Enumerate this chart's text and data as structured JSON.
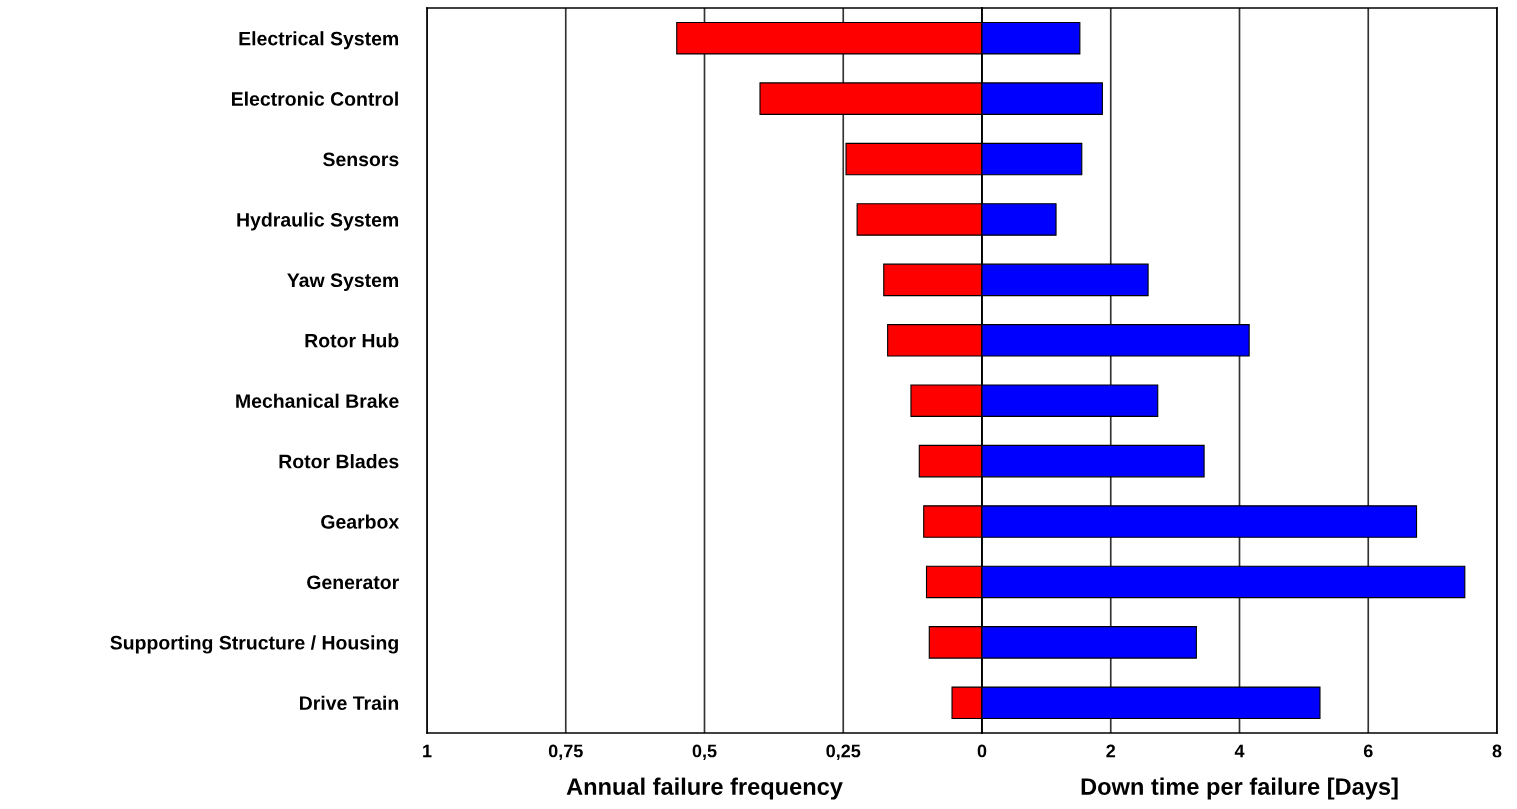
{
  "chart_data": [
    {
      "type": "bar",
      "orientation": "horizontal",
      "xlabel": "Annual failure frequency",
      "categories": [
        "Electrical System",
        "Electronic Control",
        "Sensors",
        "Hydraulic System",
        "Yaw System",
        "Rotor Hub",
        "Mechanical Brake",
        "Rotor Blades",
        "Gearbox",
        "Generator",
        "Supporting Structure / Housing",
        "Drive Train"
      ],
      "series": [
        {
          "color": "#ff0000",
          "values": [
            0.55,
            0.4,
            0.245,
            0.225,
            0.177,
            0.17,
            0.128,
            0.113,
            0.105,
            0.1,
            0.095,
            0.054
          ]
        }
      ],
      "xlim": [
        1,
        0
      ],
      "xticks": [
        1,
        {
          "value": 0.75,
          "label": "0,75"
        },
        {
          "value": 0.5,
          "label": "0,5"
        },
        {
          "value": 0.25,
          "label": "0,25"
        },
        0
      ],
      "grid": "x"
    },
    {
      "type": "bar",
      "orientation": "horizontal",
      "xlabel": "Down time per failure [Days]",
      "series": [
        {
          "color": "#0000ff",
          "values": [
            1.52,
            1.87,
            1.55,
            1.15,
            2.58,
            4.15,
            2.73,
            3.45,
            6.75,
            7.5,
            3.33,
            5.25
          ]
        }
      ],
      "xlim": [
        0,
        8
      ],
      "xticks": [
        {
          "value": 0,
          "label": null
        },
        2,
        4,
        6,
        8
      ],
      "grid": "x",
      "tick_labels": "x"
    }
  ]
}
